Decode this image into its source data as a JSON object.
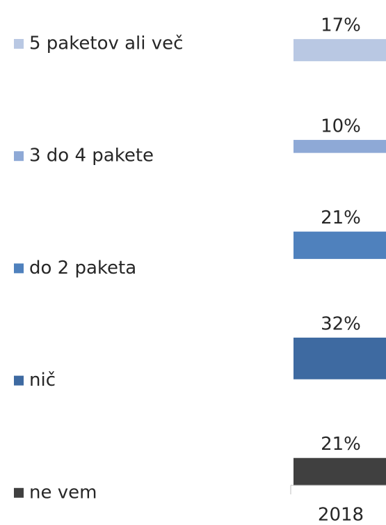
{
  "chart_data": {
    "type": "bar",
    "stacked": true,
    "categories": [
      "2018"
    ],
    "series": [
      {
        "name": "ne vem",
        "color": "#404040",
        "values": [
          21
        ],
        "value_labels": [
          "21%"
        ]
      },
      {
        "name": "nič",
        "color": "#3e6aa1",
        "values": [
          32
        ],
        "value_labels": [
          "32%"
        ]
      },
      {
        "name": "do 2 paketa",
        "color": "#4f81bd",
        "values": [
          21
        ],
        "value_labels": [
          "21%"
        ]
      },
      {
        "name": "3 do 4 pakete",
        "color": "#8ea9d6",
        "values": [
          10
        ],
        "value_labels": [
          "10%"
        ]
      },
      {
        "name": "5 paketov ali več",
        "color": "#b9c8e3",
        "values": [
          17
        ],
        "value_labels": [
          "17%"
        ]
      }
    ],
    "legend": "left"
  }
}
